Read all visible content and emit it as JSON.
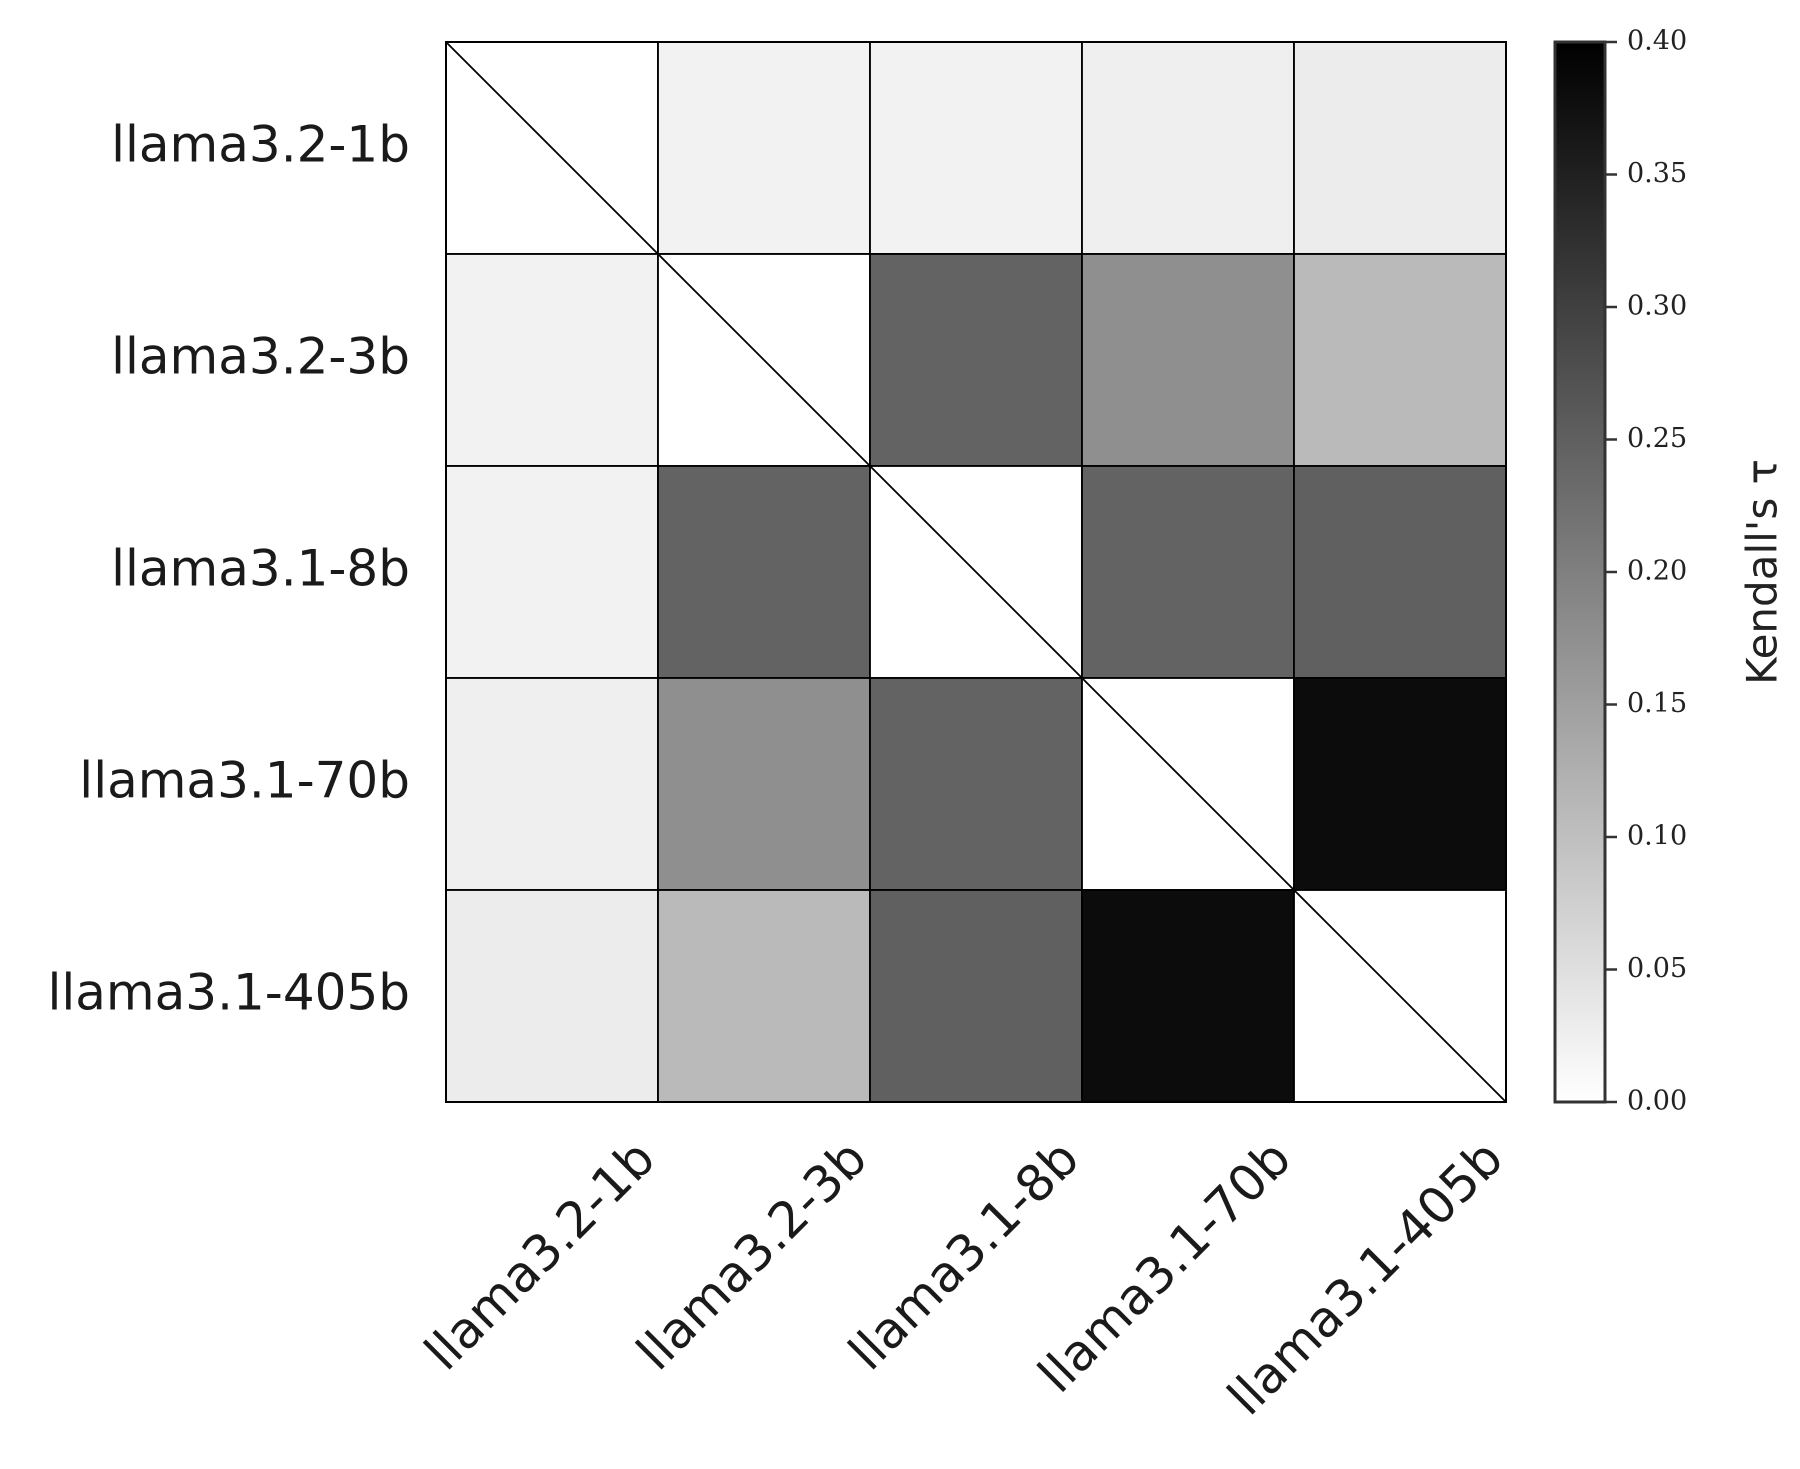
{
  "chart_data": {
    "type": "heatmap",
    "row_labels": [
      "llama3.2-1b",
      "llama3.2-3b",
      "llama3.1-8b",
      "llama3.1-70b",
      "llama3.1-405b"
    ],
    "col_labels": [
      "llama3.2-1b",
      "llama3.2-3b",
      "llama3.1-8b",
      "llama3.1-70b",
      "llama3.1-405b"
    ],
    "values": [
      [
        null,
        0.01,
        0.01,
        0.015,
        0.02
      ],
      [
        0.01,
        null,
        0.24,
        0.17,
        0.1
      ],
      [
        0.01,
        0.24,
        null,
        0.24,
        0.245
      ],
      [
        0.015,
        0.17,
        0.24,
        null,
        0.38
      ],
      [
        0.02,
        0.1,
        0.245,
        0.38,
        null
      ]
    ],
    "diagonal": "empty with diagonal line",
    "colorbar": {
      "label": "Kendall's τ",
      "range": [
        0.0,
        0.4
      ],
      "ticks": [
        "0.00",
        "0.05",
        "0.10",
        "0.15",
        "0.20",
        "0.25",
        "0.30",
        "0.35",
        "0.40"
      ],
      "colormap": "Greys",
      "color_low": "#ffffff",
      "color_high": "#000000"
    },
    "grid": true,
    "x_tick_rotation_deg": 45
  }
}
